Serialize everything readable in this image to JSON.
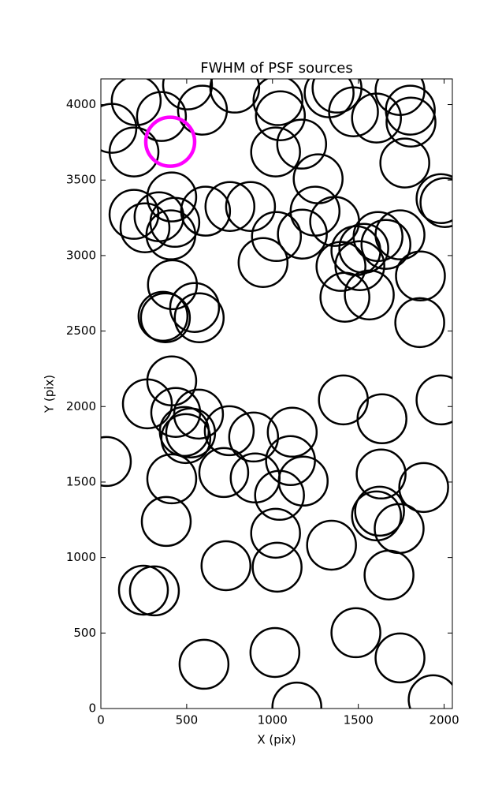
{
  "chart_data": {
    "type": "scatter",
    "title": "FWHM of PSF sources",
    "xlabel": "X (pix)",
    "ylabel": "Y (pix)",
    "xlim": [
      0,
      2048
    ],
    "ylim": [
      0,
      4170
    ],
    "xticks": [
      0,
      500,
      1000,
      1500,
      2000
    ],
    "yticks": [
      0,
      500,
      1000,
      1500,
      2000,
      2500,
      3000,
      3500,
      4000
    ],
    "series": [
      {
        "color": "#000000",
        "x": [
          64,
          206,
          353,
          193,
          505,
          592,
          780,
          1032,
          1046,
          1018,
          1170,
          1266,
          1376,
          1330,
          1472,
          1606,
          1743,
          1803,
          1807,
          1771,
          2005,
          1982,
          413,
          193,
          257,
          339,
          431,
          408,
          610,
          752,
          872,
          1023,
          945,
          1174,
          1248,
          1362,
          1399,
          1422,
          1532,
          1509,
          1486,
          1615,
          1661,
          1743,
          1564,
          1862,
          1858,
          417,
          546,
          573,
          362,
          376,
          413,
          271,
          436,
          569,
          486,
          495,
          523,
          748,
          890,
          1115,
          1105,
          32,
          413,
          716,
          899,
          1041,
          1179,
          1413,
          1638,
          1982,
          1633,
          1881,
          1606,
          1624,
          1738,
          381,
          1018,
          1344,
          729,
          1027,
          1679,
          248,
          312,
          1486,
          1014,
          1743,
          601,
          1142,
          1936
        ],
        "y": [
          3843,
          4026,
          3921,
          3686,
          4130,
          3963,
          4109,
          4026,
          3926,
          3686,
          3738,
          3508,
          4109,
          4078,
          3952,
          3911,
          4093,
          3963,
          3884,
          3613,
          3351,
          3377,
          3388,
          3273,
          3184,
          3257,
          3220,
          3137,
          3294,
          3325,
          3325,
          3126,
          2954,
          3142,
          3294,
          3226,
          2928,
          2724,
          3048,
          2933,
          3032,
          3126,
          3074,
          3137,
          2739,
          2865,
          2556,
          2807,
          2656,
          2588,
          2598,
          2588,
          2170,
          2018,
          1961,
          1950,
          1835,
          1788,
          1825,
          1840,
          1798,
          1830,
          1642,
          1636,
          1521,
          1563,
          1527,
          1412,
          1506,
          2044,
          1919,
          2044,
          1553,
          1464,
          1276,
          1307,
          1192,
          1239,
          1161,
          1082,
          946,
          936,
          884,
          784,
          779,
          502,
          371,
          335,
          293,
          10,
          58
        ]
      },
      {
        "color": "#ff00ff",
        "x": [
          404
        ],
        "y": [
          3754
        ]
      }
    ]
  }
}
